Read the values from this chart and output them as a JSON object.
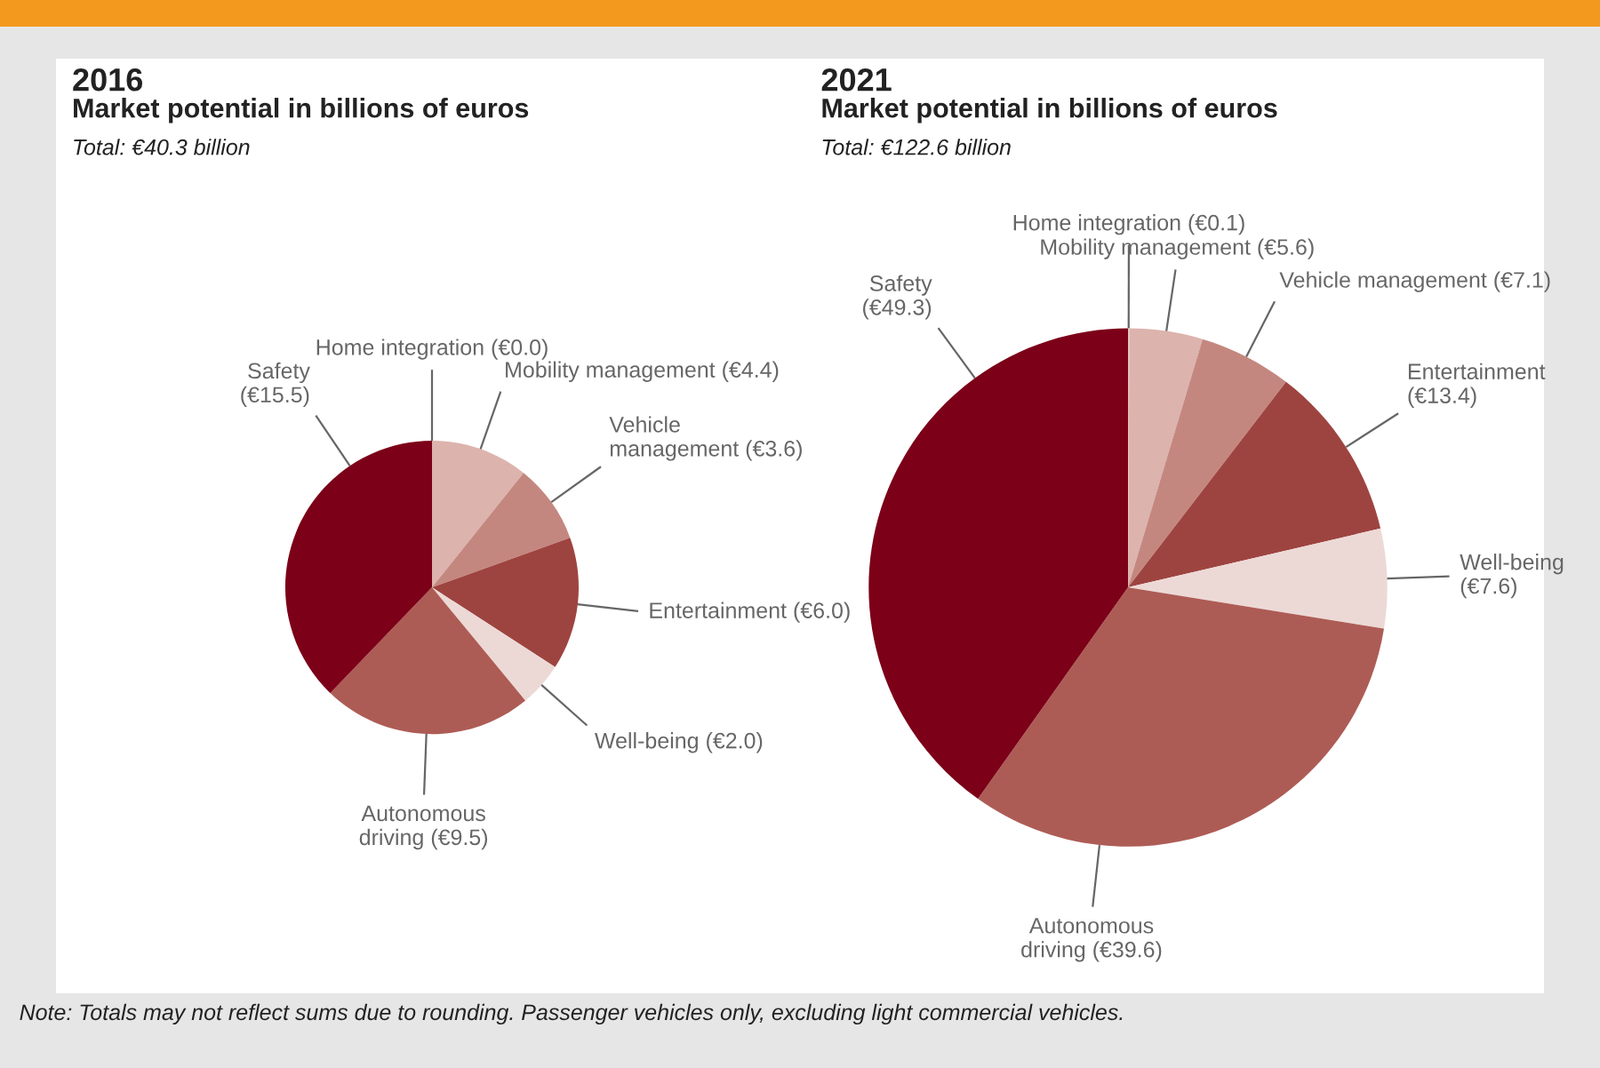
{
  "chart_data": [
    {
      "type": "pie",
      "title": "2016",
      "subtitle": "Market potential in billions of euros",
      "annotations": [
        "Total: €40.3 billion"
      ],
      "categories": [
        "Home integration (€0.0)",
        "Mobility management (€4.4)",
        "Vehicle\nmanagement (€3.6)",
        "Entertainment (€6.0)",
        "Well-being (€2.0)",
        "Autonomous\ndriving (€9.5)",
        "Safety\n(€15.5)"
      ],
      "values": [
        0.0,
        4.4,
        3.6,
        6.0,
        2.0,
        9.5,
        15.5
      ],
      "colors": [
        "#e2c0bb",
        "#dcb3ad",
        "#c4877f",
        "#9e4440",
        "#ecd9d6",
        "#ad5c55",
        "#7c0018"
      ]
    },
    {
      "type": "pie",
      "title": "2021",
      "subtitle": "Market potential in billions of euros",
      "annotations": [
        "Total: €122.6 billion",
        "Note: Totals may not reflect sums due to rounding. Passenger vehicles only, excluding light commercial vehicles."
      ],
      "categories": [
        "Home integration (€0.1)",
        "Mobility management (€5.6)",
        "Vehicle management (€7.1)",
        "Entertainment\n(€13.4)",
        "Well-being\n(€7.6)",
        "Autonomous\ndriving (€39.6)",
        "Safety\n(€49.3)"
      ],
      "values": [
        0.1,
        5.6,
        7.1,
        13.4,
        7.6,
        39.6,
        49.3
      ],
      "colors": [
        "#e2c0bb",
        "#dcb3ad",
        "#c4877f",
        "#9e4440",
        "#ecd9d6",
        "#ad5c55",
        "#7c0018"
      ]
    }
  ]
}
